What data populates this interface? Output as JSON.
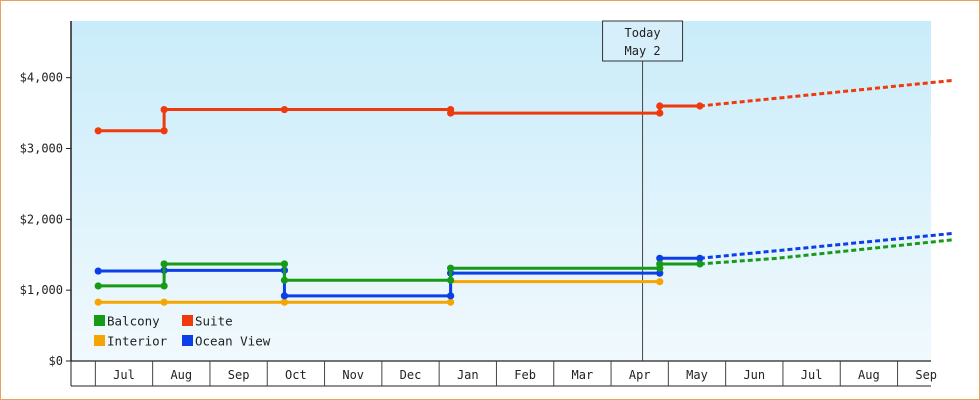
{
  "chart_data": {
    "type": "line",
    "ylim": [
      0,
      4800
    ],
    "y_ticks": [
      {
        "value": 0,
        "label": "$0"
      },
      {
        "value": 1000,
        "label": "$1,000"
      },
      {
        "value": 2000,
        "label": "$2,000"
      },
      {
        "value": 3000,
        "label": "$3,000"
      },
      {
        "value": 4000,
        "label": "$4,000"
      }
    ],
    "x_months": [
      "Jul",
      "Aug",
      "Sep",
      "Oct",
      "Nov",
      "Dec",
      "Jan",
      "Feb",
      "Mar",
      "Apr",
      "May",
      "Jun",
      "Jul",
      "Aug",
      "Sep"
    ],
    "x_range_month_index": [
      -0.45,
      14.45
    ],
    "today_marker": {
      "line1": "Today",
      "line2": "May 2",
      "x": 9.05
    },
    "grid": false,
    "legend_placement": "bottom-left",
    "series": [
      {
        "name": "Suite",
        "color": "#ee3a0c",
        "points": [
          [
            -0.45,
            3250
          ],
          [
            0.7,
            3250
          ],
          [
            0.7,
            3550
          ],
          [
            2.8,
            3550
          ],
          [
            5.7,
            3550
          ],
          [
            5.7,
            3500
          ],
          [
            9.35,
            3500
          ],
          [
            9.35,
            3600
          ],
          [
            10.05,
            3600
          ]
        ],
        "markers": [
          [
            -0.45,
            3250
          ],
          [
            0.7,
            3250
          ],
          [
            0.7,
            3550
          ],
          [
            2.8,
            3550
          ],
          [
            5.7,
            3550
          ],
          [
            5.7,
            3500
          ],
          [
            9.35,
            3500
          ],
          [
            9.35,
            3600
          ],
          [
            10.05,
            3600
          ]
        ],
        "forecast": [
          [
            10.05,
            3600
          ],
          [
            14.45,
            3960
          ]
        ]
      },
      {
        "name": "Balcony",
        "color": "#179a17",
        "points": [
          [
            -0.45,
            1060
          ],
          [
            0.7,
            1060
          ],
          [
            0.7,
            1370
          ],
          [
            2.8,
            1370
          ],
          [
            2.8,
            1140
          ],
          [
            5.7,
            1140
          ],
          [
            5.7,
            1310
          ],
          [
            9.35,
            1310
          ],
          [
            9.35,
            1370
          ],
          [
            10.05,
            1370
          ]
        ],
        "markers": [
          [
            -0.45,
            1060
          ],
          [
            0.7,
            1060
          ],
          [
            0.7,
            1370
          ],
          [
            2.8,
            1370
          ],
          [
            2.8,
            1140
          ],
          [
            5.7,
            1140
          ],
          [
            5.7,
            1310
          ],
          [
            9.35,
            1310
          ],
          [
            9.35,
            1370
          ],
          [
            10.05,
            1370
          ]
        ],
        "forecast": [
          [
            10.05,
            1370
          ],
          [
            11.4,
            1450
          ],
          [
            14.45,
            1710
          ]
        ]
      },
      {
        "name": "Interior",
        "color": "#f5a500",
        "points": [
          [
            -0.45,
            830
          ],
          [
            2.8,
            830
          ],
          [
            5.7,
            830
          ],
          [
            5.7,
            1120
          ],
          [
            9.35,
            1120
          ]
        ],
        "markers": [
          [
            -0.45,
            830
          ],
          [
            0.7,
            830
          ],
          [
            2.8,
            830
          ],
          [
            5.7,
            830
          ],
          [
            9.35,
            1120
          ]
        ],
        "forecast": []
      },
      {
        "name": "Ocean View",
        "color": "#0b3fe8",
        "points": [
          [
            -0.45,
            1270
          ],
          [
            0.7,
            1270
          ],
          [
            0.7,
            1280
          ],
          [
            2.8,
            1280
          ],
          [
            2.8,
            920
          ],
          [
            5.7,
            920
          ],
          [
            5.7,
            1240
          ],
          [
            9.35,
            1240
          ],
          [
            9.35,
            1450
          ],
          [
            10.05,
            1450
          ]
        ],
        "markers": [
          [
            -0.45,
            1270
          ],
          [
            0.7,
            1280
          ],
          [
            2.8,
            1280
          ],
          [
            2.8,
            920
          ],
          [
            5.7,
            920
          ],
          [
            5.7,
            1240
          ],
          [
            9.35,
            1240
          ],
          [
            9.35,
            1450
          ],
          [
            10.05,
            1450
          ]
        ],
        "forecast": [
          [
            10.05,
            1450
          ],
          [
            14.45,
            1800
          ]
        ]
      }
    ],
    "legend": [
      {
        "name": "Balcony",
        "color": "#179a17"
      },
      {
        "name": "Suite",
        "color": "#ee3a0c"
      },
      {
        "name": "Interior",
        "color": "#f5a500"
      },
      {
        "name": "Ocean View",
        "color": "#0b3fe8"
      }
    ]
  }
}
